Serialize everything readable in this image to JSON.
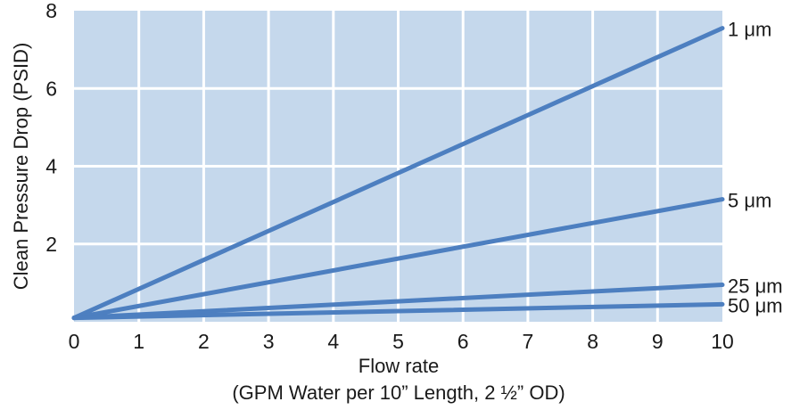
{
  "chart_data": {
    "type": "line",
    "title": "",
    "xlabel": "Flow rate",
    "xlabel_sub": "(GPM Water per 10” Length, 2 ½” OD)",
    "ylabel": "Clean Pressure Drop (PSID)",
    "xlim": [
      0,
      10
    ],
    "ylim": [
      0,
      8
    ],
    "x_ticks": [
      "0",
      "1",
      "2",
      "3",
      "4",
      "5",
      "6",
      "7",
      "8",
      "9",
      "10"
    ],
    "y_ticks": [
      "2",
      "4",
      "6",
      "8"
    ],
    "grid": true,
    "plot_background": "#c5d8ec",
    "grid_color": "#ffffff",
    "line_color": "#4d7fc0",
    "series": [
      {
        "name": "1 μm",
        "x": [
          0,
          10
        ],
        "values": [
          0.1,
          7.55
        ]
      },
      {
        "name": "5 μm",
        "x": [
          0,
          10
        ],
        "values": [
          0.1,
          3.15
        ]
      },
      {
        "name": "25 μm",
        "x": [
          0,
          10
        ],
        "values": [
          0.1,
          0.95
        ]
      },
      {
        "name": "50 μm",
        "x": [
          0,
          10
        ],
        "values": [
          0.1,
          0.45
        ]
      }
    ]
  }
}
